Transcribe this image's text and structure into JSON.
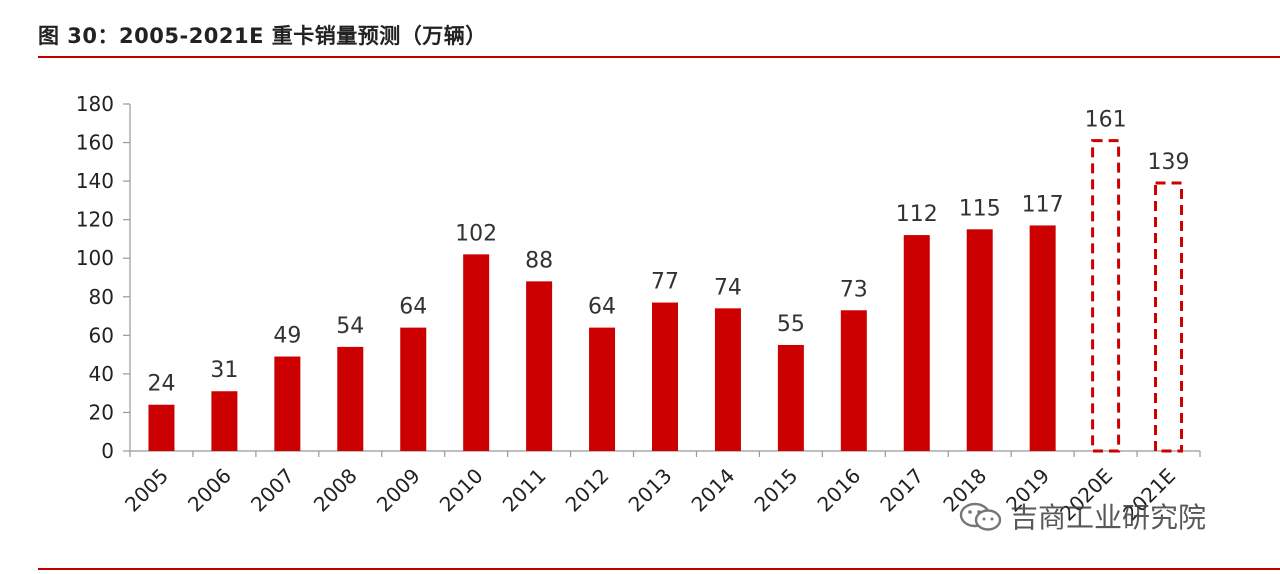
{
  "figure": {
    "title": "图 30：2005-2021E 重卡销量预测（万辆）"
  },
  "watermark": {
    "text": "吉商工业研究院",
    "icon": "wechat-icon"
  },
  "colors": {
    "bar": "#cc0000",
    "forecast_outline": "#cc0000",
    "rule": "#c00000",
    "axis": "#999999"
  },
  "chart_data": {
    "type": "bar",
    "title": "",
    "xlabel": "",
    "ylabel": "",
    "ylim": [
      0,
      180
    ],
    "yticks": [
      0,
      20,
      40,
      60,
      80,
      100,
      120,
      140,
      160,
      180
    ],
    "grid": false,
    "categories": [
      "2005",
      "2006",
      "2007",
      "2008",
      "2009",
      "2010",
      "2011",
      "2012",
      "2013",
      "2014",
      "2015",
      "2016",
      "2017",
      "2018",
      "2019",
      "2020E",
      "2021E"
    ],
    "values": [
      24,
      31,
      49,
      54,
      64,
      102,
      88,
      64,
      77,
      74,
      55,
      73,
      112,
      115,
      117,
      161,
      139
    ],
    "forecast": [
      false,
      false,
      false,
      false,
      false,
      false,
      false,
      false,
      false,
      false,
      false,
      false,
      false,
      false,
      false,
      true,
      true
    ]
  }
}
